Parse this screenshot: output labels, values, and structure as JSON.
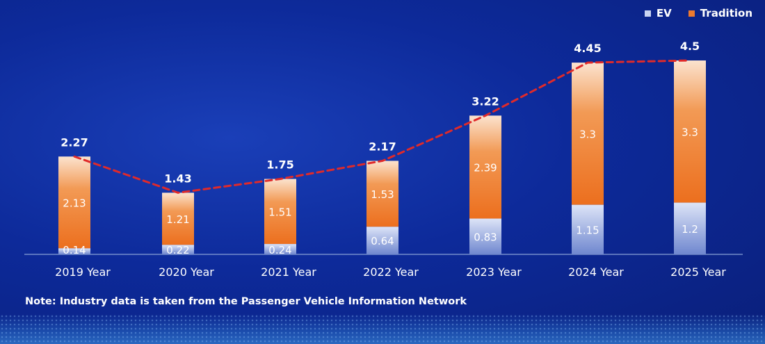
{
  "chart_data": {
    "type": "bar",
    "stacked": true,
    "categories": [
      "2019 Year",
      "2020 Year",
      "2021 Year",
      "2022 Year",
      "2023 Year",
      "2024 Year",
      "2025 Year"
    ],
    "series": [
      {
        "name": "EV",
        "values": [
          0.14,
          0.22,
          0.24,
          0.64,
          0.83,
          1.15,
          1.2
        ],
        "color": "#c9d4f2"
      },
      {
        "name": "Tradition",
        "values": [
          2.13,
          1.21,
          1.51,
          1.53,
          2.39,
          3.3,
          3.3
        ],
        "color": "#ee7a2e"
      }
    ],
    "totals": [
      2.27,
      1.43,
      1.75,
      2.17,
      3.22,
      4.45,
      4.5
    ],
    "trend_line": {
      "values": [
        2.27,
        1.43,
        1.75,
        2.17,
        3.22,
        4.45,
        4.5
      ],
      "color": "#e02a2a",
      "style": "dashed"
    },
    "ylim": [
      0,
      4.86
    ],
    "grid": false,
    "legend_position": "top-right"
  },
  "legend": {
    "ev_label": "EV",
    "tradition_label": "Tradition"
  },
  "note": "Note: Industry data is taken from the Passenger Vehicle Information Network",
  "colors": {
    "background": "#0d2a9a",
    "axis": "#8aa3d6",
    "label": "#ffffff"
  }
}
